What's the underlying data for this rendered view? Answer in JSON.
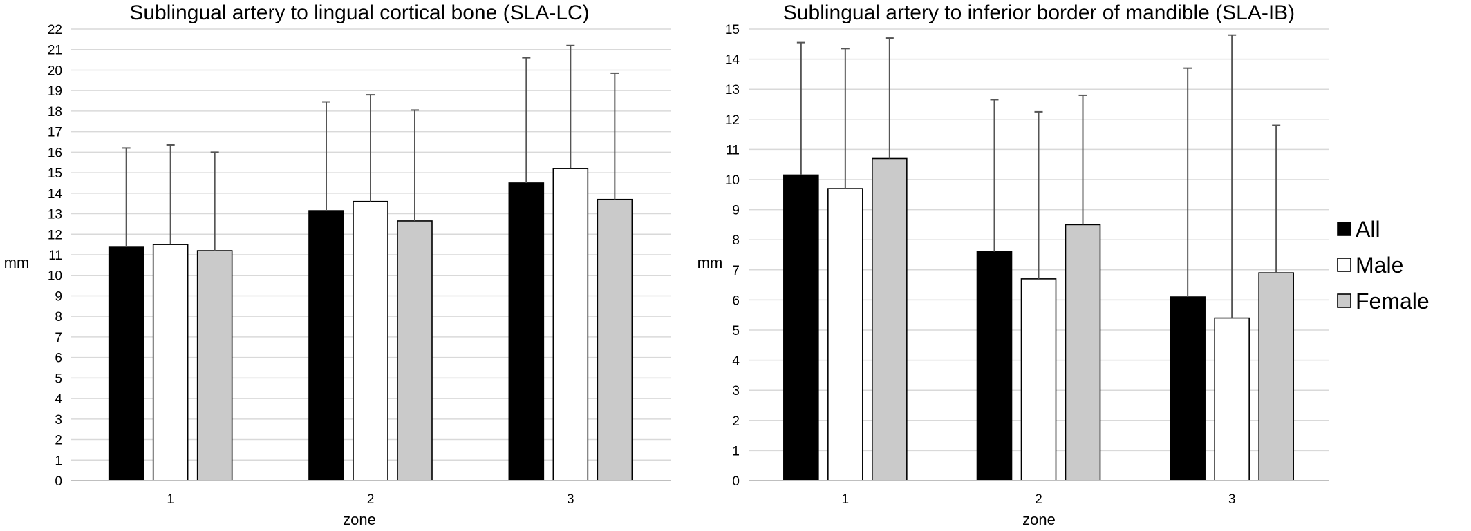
{
  "chart_data": [
    {
      "type": "bar",
      "title": "Sublingual artery to lingual cortical bone (SLA-LC)",
      "xlabel": "zone",
      "ylabel": "mm",
      "categories": [
        "1",
        "2",
        "3"
      ],
      "ylim": [
        0,
        22
      ],
      "ytick_step": 1,
      "grid": true,
      "series": [
        {
          "name": "All",
          "color": "#000000",
          "values": [
            11.4,
            13.15,
            14.5
          ],
          "errors": [
            4.8,
            5.3,
            6.1
          ]
        },
        {
          "name": "Male",
          "color": "#ffffff",
          "values": [
            11.5,
            13.6,
            15.2
          ],
          "errors": [
            4.85,
            5.2,
            6.0
          ]
        },
        {
          "name": "Female",
          "color": "#cacaca",
          "values": [
            11.2,
            12.65,
            13.7
          ],
          "errors": [
            4.8,
            5.4,
            6.15
          ]
        }
      ]
    },
    {
      "type": "bar",
      "title": "Sublingual artery to inferior border of mandible (SLA-IB)",
      "xlabel": "zone",
      "ylabel": "mm",
      "categories": [
        "1",
        "2",
        "3"
      ],
      "ylim": [
        0,
        15
      ],
      "ytick_step": 1,
      "grid": true,
      "legend": "right",
      "series": [
        {
          "name": "All",
          "color": "#000000",
          "values": [
            10.15,
            7.6,
            6.1
          ],
          "errors": [
            4.4,
            5.05,
            7.6
          ]
        },
        {
          "name": "Male",
          "color": "#ffffff",
          "values": [
            9.7,
            6.7,
            5.4
          ],
          "errors": [
            4.65,
            5.55,
            9.4
          ]
        },
        {
          "name": "Female",
          "color": "#cacaca",
          "values": [
            10.7,
            8.5,
            6.9
          ],
          "errors": [
            4.0,
            4.3,
            4.9
          ]
        }
      ]
    }
  ]
}
